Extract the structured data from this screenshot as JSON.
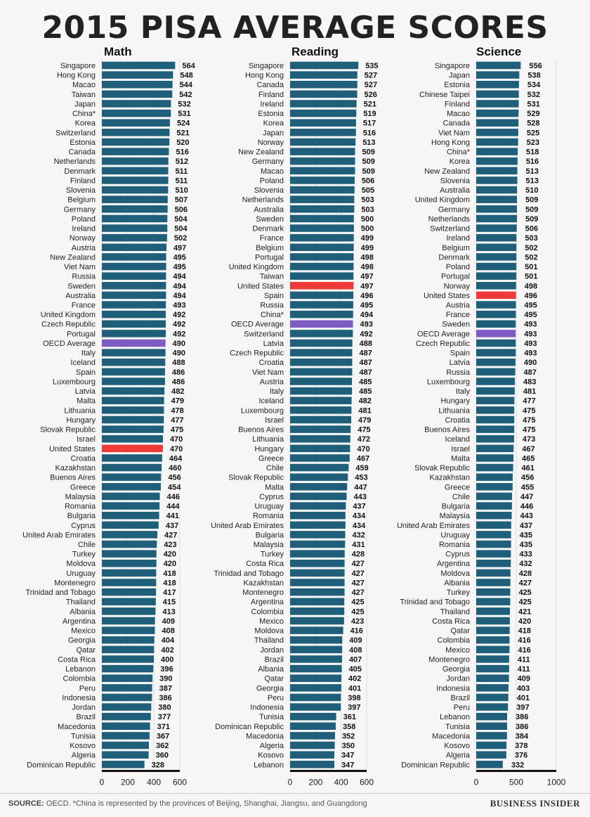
{
  "title": "2015 PISA AVERAGE SCORES",
  "footer": {
    "source_label": "SOURCE:",
    "source_text": " OECD. *China is represented by the provinces of Beijing, Shanghai, Jiangsu, and Guangdong",
    "logo": "BUSINESS INSIDER"
  },
  "colors": {
    "bar": "#1f5f7a",
    "highlight_us": "#f03a3a",
    "highlight_oecd": "#7e5bc3",
    "grid": "#dddddd",
    "axis": "#111111"
  },
  "chart_data": [
    {
      "type": "bar",
      "orientation": "horizontal",
      "title": "Math",
      "xlim": [
        0,
        600
      ],
      "xticks": [
        "0",
        "200",
        "400",
        "600"
      ],
      "grid": true,
      "categories": [
        "Singapore",
        "Hong Kong",
        "Macao",
        "Taiwan",
        "Japan",
        "China*",
        "Korea",
        "Switzerland",
        "Estonia",
        "Canada",
        "Netherlands",
        "Denmark",
        "Finland",
        "Slovenia",
        "Belgium",
        "Germany",
        "Poland",
        "Ireland",
        "Norway",
        "Austria",
        "New Zealand",
        "Viet Nam",
        "Russia",
        "Sweden",
        "Australia",
        "France",
        "United Kingdom",
        "Czech Republic",
        "Portugal",
        "OECD Average",
        "Italy",
        "Iceland",
        "Spain",
        "Luxembourg",
        "Latvia",
        "Malta",
        "Lithuania",
        "Hungary",
        "Slovak Republic",
        "Israel",
        "United States",
        "Croatia",
        "Kazakhstan",
        "Buenos Aires",
        "Greece",
        "Malaysia",
        "Romania",
        "Bulgaria",
        "Cyprus",
        "United Arab Emirates",
        "Chile",
        "Turkey",
        "Moldova",
        "Uruguay",
        "Montenegro",
        "Trinidad and Tobago",
        "Thailand",
        "Albania",
        "Argentina",
        "Mexico",
        "Georgia",
        "Qatar",
        "Costa Rica",
        "Lebanon",
        "Colombia",
        "Peru",
        "Indonesia",
        "Jordan",
        "Brazil",
        "Macedonia",
        "Tunisia",
        "Kosovo",
        "Algeria",
        "Dominican Republic"
      ],
      "values": [
        564,
        548,
        544,
        542,
        532,
        531,
        524,
        521,
        520,
        516,
        512,
        511,
        511,
        510,
        507,
        506,
        504,
        504,
        502,
        497,
        495,
        495,
        494,
        494,
        494,
        493,
        492,
        492,
        492,
        490,
        490,
        488,
        486,
        486,
        482,
        479,
        478,
        477,
        475,
        470,
        470,
        464,
        460,
        456,
        454,
        446,
        444,
        441,
        437,
        427,
        423,
        420,
        420,
        418,
        418,
        417,
        415,
        413,
        409,
        408,
        404,
        402,
        400,
        396,
        390,
        387,
        386,
        380,
        377,
        371,
        367,
        362,
        360,
        328
      ]
    },
    {
      "type": "bar",
      "orientation": "horizontal",
      "title": "Reading",
      "xlim": [
        0,
        600
      ],
      "xticks": [
        "0",
        "200",
        "400",
        "600"
      ],
      "grid": true,
      "categories": [
        "Singapore",
        "Hong Kong",
        "Canada",
        "Finland",
        "Ireland",
        "Estonia",
        "Korea",
        "Japan",
        "Norway",
        "New Zealand",
        "Germany",
        "Macao",
        "Poland",
        "Slovenia",
        "Netherlands",
        "Australia",
        "Sweden",
        "Denmark",
        "France",
        "Belgium",
        "Portugal",
        "United Kingdom",
        "Taiwan",
        "United States",
        "Spain",
        "Russia",
        "China*",
        "OECD Average",
        "Switzerland",
        "Latvia",
        "Czech Republic",
        "Croatia",
        "Viet Nam",
        "Austria",
        "Italy",
        "Iceland",
        "Luxembourg",
        "Israel",
        "Buenos Aires",
        "Lithuania",
        "Hungary",
        "Greece",
        "Chile",
        "Slovak Republic",
        "Malta",
        "Cyprus",
        "Uruguay",
        "Romania",
        "United Arab Emirates",
        "Bulgaria",
        "Malaysia",
        "Turkey",
        "Costa Rica",
        "Trinidad and Tobago",
        "Kazakhstan",
        "Montenegro",
        "Argentina",
        "Colombia",
        "Mexico",
        "Moldova",
        "Thailand",
        "Jordan",
        "Brazil",
        "Albania",
        "Qatar",
        "Georgia",
        "Peru",
        "Indonesia",
        "Tunisia",
        "Dominican Republic",
        "Macedonia",
        "Algeria",
        "Kosovo",
        "Lebanon"
      ],
      "values": [
        535,
        527,
        527,
        526,
        521,
        519,
        517,
        516,
        513,
        509,
        509,
        509,
        506,
        505,
        503,
        503,
        500,
        500,
        499,
        499,
        498,
        498,
        497,
        497,
        496,
        495,
        494,
        493,
        492,
        488,
        487,
        487,
        487,
        485,
        485,
        482,
        481,
        479,
        475,
        472,
        470,
        467,
        459,
        453,
        447,
        443,
        437,
        434,
        434,
        432,
        431,
        428,
        427,
        427,
        427,
        427,
        425,
        425,
        423,
        416,
        409,
        408,
        407,
        405,
        402,
        401,
        398,
        397,
        361,
        358,
        352,
        350,
        347,
        347
      ]
    },
    {
      "type": "bar",
      "orientation": "horizontal",
      "title": "Science",
      "xlim": [
        0,
        1000
      ],
      "xticks": [
        "0",
        "500",
        "1000"
      ],
      "grid": true,
      "categories": [
        "Singapore",
        "Japan",
        "Estonia",
        "Chinese Taipei",
        "Finland",
        "Macao",
        "Canada",
        "Viet Nam",
        "Hong Kong",
        "China*",
        "Korea",
        "New Zealand",
        "Slovenia",
        "Australia",
        "United Kingdom",
        "Germany",
        "Netherlands",
        "Switzerland",
        "Ireland",
        "Belgium",
        "Denmark",
        "Poland",
        "Portugal",
        "Norway",
        "United States",
        "Austria",
        "France",
        "Sweden",
        "OECD Average",
        "Czech Republic",
        "Spain",
        "Latvia",
        "Russia",
        "Luxembourg",
        "Italy",
        "Hungary",
        "Lithuania",
        "Croatia",
        "Buenos Aires",
        "Iceland",
        "Israel",
        "Malta",
        "Slovak Republic",
        "Kazakhstan",
        "Greece",
        "Chile",
        "Bulgaria",
        "Malaysia",
        "United Arab Emirates",
        "Uruguay",
        "Romania",
        "Cyprus",
        "Argentina",
        "Moldova",
        "Albania",
        "Turkey",
        "Trinidad and Tobago",
        "Thailand",
        "Costa Rica",
        "Qatar",
        "Colombia",
        "Mexico",
        "Montenegro",
        "Georgia",
        "Jordan",
        "Indonesia",
        "Brazil",
        "Peru",
        "Lebanon",
        "Tunisia",
        "Macedonia",
        "Kosovo",
        "Algeria",
        "Dominican Republic"
      ],
      "values": [
        556,
        538,
        534,
        532,
        531,
        529,
        528,
        525,
        523,
        518,
        516,
        513,
        513,
        510,
        509,
        509,
        509,
        506,
        503,
        502,
        502,
        501,
        501,
        498,
        496,
        495,
        495,
        493,
        493,
        493,
        493,
        490,
        487,
        483,
        481,
        477,
        475,
        475,
        475,
        473,
        467,
        465,
        461,
        456,
        455,
        447,
        446,
        443,
        437,
        435,
        435,
        433,
        432,
        428,
        427,
        425,
        425,
        421,
        420,
        418,
        416,
        416,
        411,
        411,
        409,
        403,
        401,
        397,
        386,
        386,
        384,
        378,
        376,
        332
      ]
    }
  ]
}
